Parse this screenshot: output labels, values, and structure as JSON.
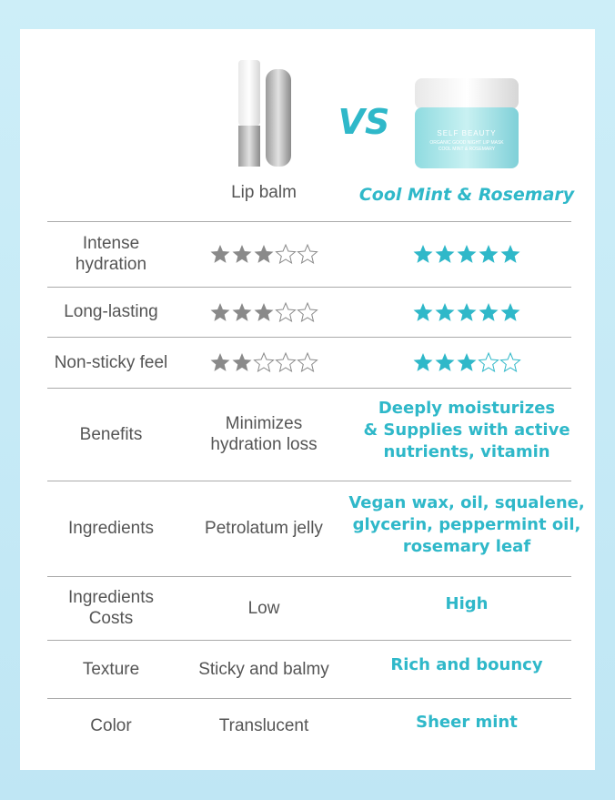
{
  "header": {
    "left_product": "Lip balm",
    "vs": "VS",
    "right_product": "Cool Mint & Rosemary",
    "jar_brand": "SELF BEAUTY",
    "jar_line1": "ORGANIC GOOD NIGHT LIP MASK",
    "jar_line2": "COOL MINT & ROSEMARY"
  },
  "rating_scale": 5,
  "rows": [
    {
      "label": "Intense\nhydration",
      "lip_balm_rating": 3,
      "mint_rating": 5
    },
    {
      "label": "Long-lasting",
      "lip_balm_rating": 3,
      "mint_rating": 5
    },
    {
      "label": "Non-sticky feel",
      "lip_balm_rating": 2,
      "mint_rating": 3
    },
    {
      "label": "Benefits",
      "lip_balm": "Minimizes\nhydration loss",
      "mint": "Deeply moisturizes\n& Supplies with active\nnutrients, vitamin"
    },
    {
      "label": "Ingredients",
      "lip_balm": "Petrolatum jelly",
      "mint": "Vegan wax, oil, squalene,\nglycerin, peppermint oil,\nrosemary leaf"
    },
    {
      "label": "Ingredients\nCosts",
      "lip_balm": "Low",
      "mint": "High"
    },
    {
      "label": "Texture",
      "lip_balm": "Sticky and balmy",
      "mint": "Rich and bouncy"
    },
    {
      "label": "Color",
      "lip_balm": "Translucent",
      "mint": "Sheer mint"
    }
  ]
}
